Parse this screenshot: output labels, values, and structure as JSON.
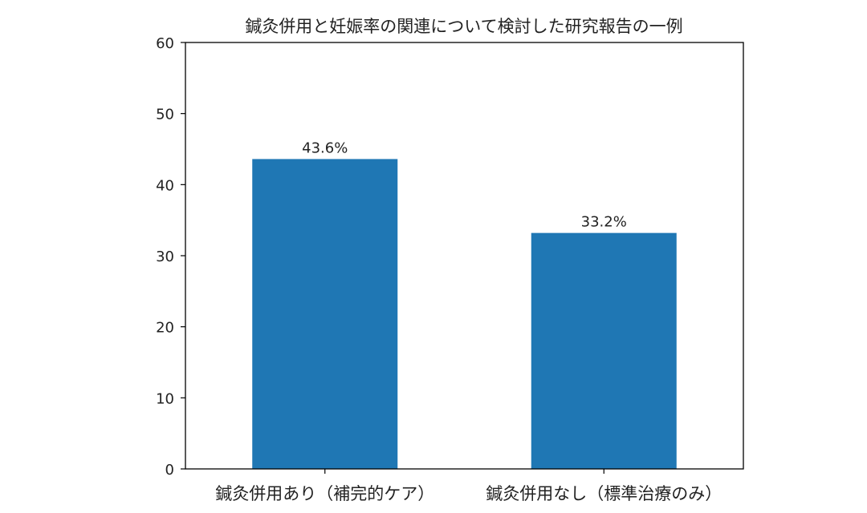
{
  "chart_data": {
    "type": "bar",
    "title": "鍼灸併用と妊娠率の関連について検討した研究報告の一例",
    "xlabel": "",
    "ylabel": "",
    "categories": [
      "鍼灸併用あり（補完的ケア）",
      "鍼灸併用なし（標準治療のみ）"
    ],
    "values": [
      43.6,
      33.2
    ],
    "data_labels": [
      "43.6%",
      "33.2%"
    ],
    "ylim": [
      0,
      60
    ],
    "yticks": [
      0,
      10,
      20,
      30,
      40,
      50,
      60
    ],
    "grid": false,
    "legend": "none",
    "bar_color": "#1f77b4"
  }
}
